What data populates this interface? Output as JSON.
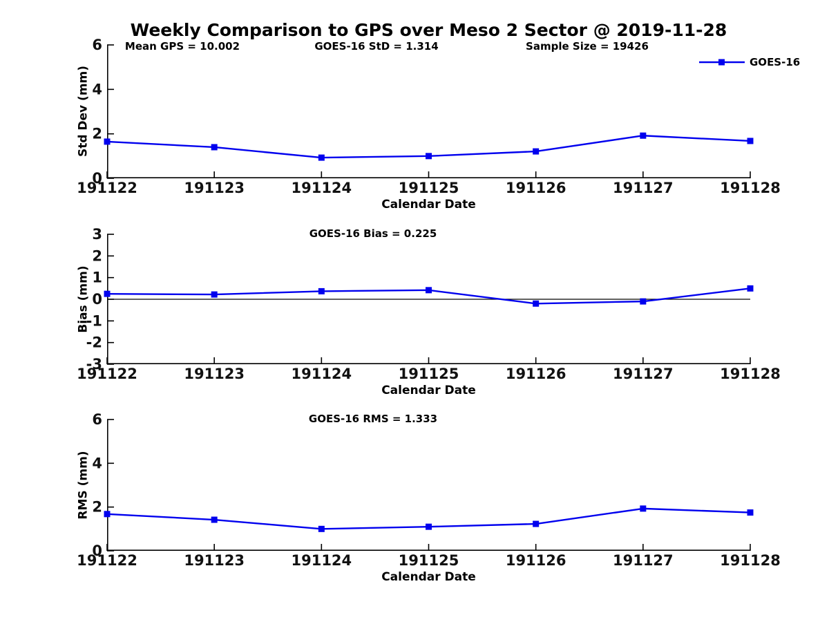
{
  "figure": {
    "title": "Weekly Comparison to GPS over Meso 2 Sector @ 2019-11-28",
    "background": "#ffffff",
    "line_color": "#0000ee",
    "axis_color": "#000000"
  },
  "chart_data": [
    {
      "type": "line",
      "panel": "std_dev",
      "annotations": {
        "mean_gps": "Mean GPS = 10.002",
        "goes16_std": "GOES-16 StD = 1.314",
        "sample_size": "Sample Size = 19426"
      },
      "x": [
        "191122",
        "191123",
        "191124",
        "191125",
        "191126",
        "191127",
        "191128"
      ],
      "series": [
        {
          "name": "GOES-16",
          "values": [
            1.65,
            1.4,
            0.93,
            1.0,
            1.21,
            1.92,
            1.68
          ]
        }
      ],
      "xlabel": "Calendar Date",
      "ylabel": "Std Dev (mm)",
      "ylim": [
        0,
        6
      ],
      "yticks": [
        0,
        2,
        4,
        6
      ],
      "grid": false,
      "legend_position": "outside-upper-right",
      "marker": "square"
    },
    {
      "type": "line",
      "panel": "bias",
      "annotations": {
        "goes16_bias": "GOES-16 Bias  = 0.225"
      },
      "x": [
        "191122",
        "191123",
        "191124",
        "191125",
        "191126",
        "191127",
        "191128"
      ],
      "series": [
        {
          "name": "GOES-16",
          "values": [
            0.25,
            0.22,
            0.37,
            0.42,
            -0.2,
            -0.1,
            0.5
          ]
        }
      ],
      "xlabel": "Calendar Date",
      "ylabel": "Bias (mm)",
      "ylim": [
        -3,
        3
      ],
      "yticks": [
        -3,
        -2,
        -1,
        0,
        1,
        2,
        3
      ],
      "zero_line": true,
      "grid": false,
      "marker": "square"
    },
    {
      "type": "line",
      "panel": "rms",
      "annotations": {
        "goes16_rms": "GOES-16 RMS = 1.333"
      },
      "x": [
        "191122",
        "191123",
        "191124",
        "191125",
        "191126",
        "191127",
        "191128"
      ],
      "series": [
        {
          "name": "GOES-16",
          "values": [
            1.68,
            1.42,
            1.0,
            1.1,
            1.23,
            1.93,
            1.75
          ]
        }
      ],
      "xlabel": "Calendar Date",
      "ylabel": "RMS (mm)",
      "ylim": [
        0,
        6
      ],
      "yticks": [
        0,
        2,
        4,
        6
      ],
      "grid": false,
      "marker": "square"
    }
  ]
}
